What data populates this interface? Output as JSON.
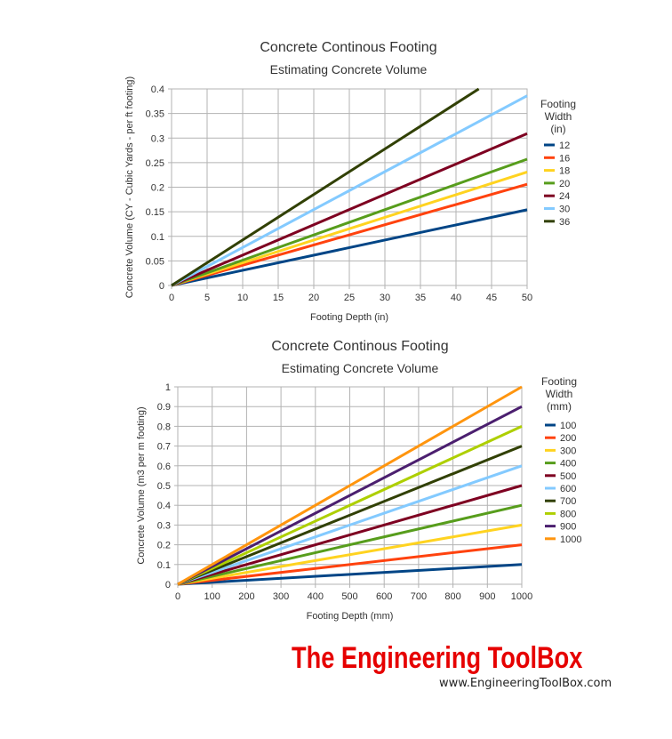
{
  "chart_data": [
    {
      "type": "line",
      "title": "Concrete Continous Footing",
      "subtitle": "Estimating Concrete Volume",
      "xlabel": "Footing Depth (in)",
      "ylabel": "Concrete Volume (CY - Cubic Yards - per ft footing)",
      "xlim": [
        0,
        50
      ],
      "ylim": [
        0,
        0.4
      ],
      "xticks": [
        "0",
        "5",
        "10",
        "15",
        "20",
        "25",
        "30",
        "35",
        "40",
        "45",
        "50"
      ],
      "yticks": [
        "0",
        "0.05",
        "0.1",
        "0.15",
        "0.2",
        "0.25",
        "0.3",
        "0.35",
        "0.4"
      ],
      "grid": true,
      "legend_title": [
        "Footing",
        "Width",
        "(in)"
      ],
      "legend_position": "right",
      "series": [
        {
          "name": "12",
          "color": "#004586",
          "x": [
            0,
            50
          ],
          "y": [
            0,
            0.154
          ]
        },
        {
          "name": "16",
          "color": "#ff420e",
          "x": [
            0,
            50
          ],
          "y": [
            0,
            0.206
          ]
        },
        {
          "name": "18",
          "color": "#ffd320",
          "x": [
            0,
            50
          ],
          "y": [
            0,
            0.231
          ]
        },
        {
          "name": "20",
          "color": "#579d1c",
          "x": [
            0,
            50
          ],
          "y": [
            0,
            0.257
          ]
        },
        {
          "name": "24",
          "color": "#7e0021",
          "x": [
            0,
            50
          ],
          "y": [
            0,
            0.309
          ]
        },
        {
          "name": "30",
          "color": "#83caff",
          "x": [
            0,
            50
          ],
          "y": [
            0,
            0.386
          ]
        },
        {
          "name": "36",
          "color": "#314004",
          "x": [
            0,
            43.2
          ],
          "y": [
            0,
            0.4
          ]
        }
      ]
    },
    {
      "type": "line",
      "title": "Concrete Continous Footing",
      "subtitle": "Estimating Concrete Volume",
      "xlabel": "Footing Depth (mm)",
      "ylabel": "Concrete Volume (m3 per m footing)",
      "xlim": [
        0,
        1000
      ],
      "ylim": [
        0,
        1
      ],
      "xticks": [
        "0",
        "100",
        "200",
        "300",
        "400",
        "500",
        "600",
        "700",
        "800",
        "900",
        "1000"
      ],
      "yticks": [
        "0",
        "0.1",
        "0.2",
        "0.3",
        "0.4",
        "0.5",
        "0.6",
        "0.7",
        "0.8",
        "0.9",
        "1"
      ],
      "grid": true,
      "legend_title": [
        "Footing",
        "Width",
        "(mm)"
      ],
      "legend_position": "right",
      "series": [
        {
          "name": "100",
          "color": "#004586",
          "x": [
            0,
            1000
          ],
          "y": [
            0,
            0.1
          ]
        },
        {
          "name": "200",
          "color": "#ff420e",
          "x": [
            0,
            1000
          ],
          "y": [
            0,
            0.2
          ]
        },
        {
          "name": "300",
          "color": "#ffd320",
          "x": [
            0,
            1000
          ],
          "y": [
            0,
            0.3
          ]
        },
        {
          "name": "400",
          "color": "#579d1c",
          "x": [
            0,
            1000
          ],
          "y": [
            0,
            0.4
          ]
        },
        {
          "name": "500",
          "color": "#7e0021",
          "x": [
            0,
            1000
          ],
          "y": [
            0,
            0.5
          ]
        },
        {
          "name": "600",
          "color": "#83caff",
          "x": [
            0,
            1000
          ],
          "y": [
            0,
            0.6
          ]
        },
        {
          "name": "700",
          "color": "#314004",
          "x": [
            0,
            1000
          ],
          "y": [
            0,
            0.7
          ]
        },
        {
          "name": "800",
          "color": "#aecf00",
          "x": [
            0,
            1000
          ],
          "y": [
            0,
            0.8
          ]
        },
        {
          "name": "900",
          "color": "#4b1f6f",
          "x": [
            0,
            1000
          ],
          "y": [
            0,
            0.9
          ]
        },
        {
          "name": "1000",
          "color": "#ff950e",
          "x": [
            0,
            1000
          ],
          "y": [
            0,
            1.0
          ]
        }
      ]
    }
  ],
  "branding": {
    "title": "The Engineering ToolBox",
    "url": "www.EngineeringToolBox.com",
    "title_color": "#e60000"
  }
}
